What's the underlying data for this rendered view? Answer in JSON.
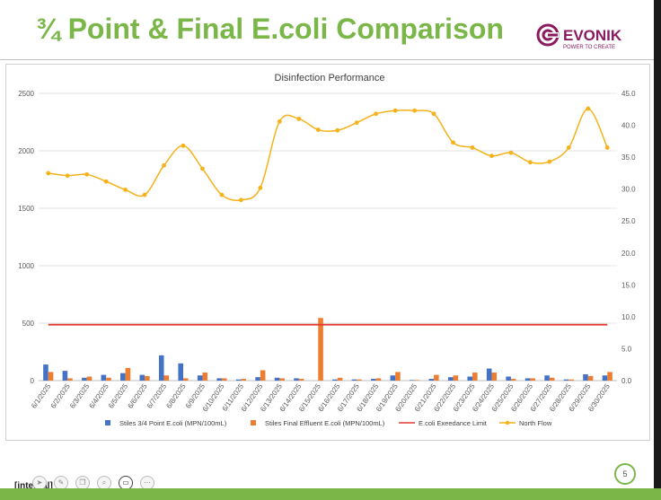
{
  "slide": {
    "title": "¾ Point & Final E.coli Comparison",
    "logo": {
      "wordmark": "EVONIK",
      "tagline": "POWER TO CREATE",
      "brand_color": "#8a1b61"
    },
    "classification_label": "[internal]",
    "page_number": "5",
    "accent_color": "#7ab648",
    "toolbar_icons": [
      "pointer-icon",
      "pen-icon",
      "copy-icon",
      "zoom-icon",
      "video-icon",
      "more-icon"
    ]
  },
  "chart_data": {
    "type": "bar",
    "title": "Disinfection Performance",
    "categories": [
      "6/1/2025",
      "6/2/2025",
      "6/3/2025",
      "6/4/2025",
      "6/5/2025",
      "6/6/2025",
      "6/7/2025",
      "6/8/2025",
      "6/9/2025",
      "6/10/2025",
      "6/11/2025",
      "6/12/2025",
      "6/13/2025",
      "6/14/2025",
      "6/15/2025",
      "6/16/2025",
      "6/17/2025",
      "6/18/2025",
      "6/19/2025",
      "6/20/2025",
      "6/21/2025",
      "6/22/2025",
      "6/23/2025",
      "6/24/2025",
      "6/25/2025",
      "6/26/2025",
      "6/27/2025",
      "6/28/2025",
      "6/29/2025",
      "6/30/2025"
    ],
    "ylim": [
      0,
      2500
    ],
    "yticks": [
      "0",
      "500",
      "1000",
      "1500",
      "2000",
      "2500"
    ],
    "y2lim": [
      0,
      45
    ],
    "y2ticks": [
      "0.0",
      "5.0",
      "10.0",
      "15.0",
      "20.0",
      "25.0",
      "30.0",
      "35.0",
      "40.0",
      "45.0"
    ],
    "grid": true,
    "legend_position": "bottom",
    "series": [
      {
        "name": "Stiles 3/4 Point E.coli (MPN/100mL)",
        "kind": "bar",
        "axis": "left",
        "color": "#4472c4",
        "values": [
          140,
          85,
          25,
          50,
          65,
          50,
          220,
          150,
          45,
          20,
          10,
          30,
          25,
          20,
          0,
          10,
          10,
          15,
          45,
          5,
          15,
          30,
          35,
          105,
          35,
          20,
          45,
          10,
          55,
          45
        ]
      },
      {
        "name": "Stiles Final Effluent E.coli  (MPN/100mL)",
        "kind": "bar",
        "axis": "left",
        "color": "#ed7d31",
        "values": [
          75,
          20,
          35,
          25,
          110,
          40,
          45,
          20,
          70,
          20,
          15,
          90,
          20,
          15,
          545,
          25,
          10,
          20,
          75,
          5,
          50,
          45,
          70,
          70,
          15,
          20,
          25,
          10,
          40,
          75
        ]
      },
      {
        "name": "E.coli Exeedance Limit",
        "kind": "line",
        "axis": "left",
        "color": "#e03c31",
        "values": [
          487,
          487,
          487,
          487,
          487,
          487,
          487,
          487,
          487,
          487,
          487,
          487,
          487,
          487,
          487,
          487,
          487,
          487,
          487,
          487,
          487,
          487,
          487,
          487,
          487,
          487,
          487,
          487,
          487,
          487
        ]
      },
      {
        "name": "North Flow",
        "kind": "line",
        "axis": "right",
        "color": "#f5b21a",
        "values": [
          32.5,
          32.1,
          32.3,
          31.2,
          29.9,
          29.1,
          33.7,
          36.8,
          33.2,
          29.1,
          28.3,
          30.2,
          40.6,
          41.0,
          39.3,
          39.2,
          40.4,
          41.8,
          42.3,
          42.3,
          41.8,
          37.3,
          36.5,
          35.2,
          35.7,
          34.2,
          34.3,
          36.5,
          42.6,
          36.5
        ]
      }
    ]
  }
}
